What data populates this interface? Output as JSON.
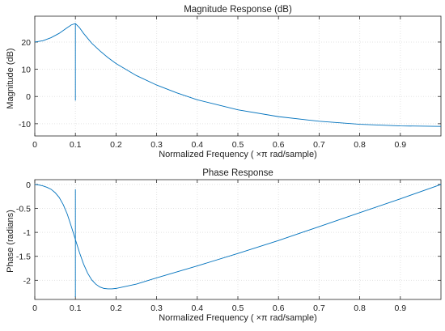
{
  "colors": {
    "line": "#0072bd",
    "axis": "#262626",
    "grid": "#e3e3e3"
  },
  "chart_data": [
    {
      "type": "line",
      "title": "Magnitude Response (dB)",
      "xlabel": "Normalized Frequency ( ×π rad/sample)",
      "ylabel": "Magnitude (dB)",
      "xlim": [
        0,
        1
      ],
      "ylim": [
        -14.5,
        29.5
      ],
      "grid": true,
      "xticks": [
        0,
        0.1,
        0.2,
        0.3,
        0.4,
        0.5,
        0.6,
        0.7,
        0.8,
        0.9
      ],
      "xtick_labels": [
        "0",
        "0.1",
        "0.2",
        "0.3",
        "0.4",
        "0.5",
        "0.6",
        "0.7",
        "0.8",
        "0.9"
      ],
      "yticks": [
        20,
        10,
        0,
        -10
      ],
      "ytick_labels": [
        "20",
        "10",
        "0",
        "-10"
      ],
      "series": [
        {
          "x": [
            0,
            0.02,
            0.04,
            0.06,
            0.08,
            0.09,
            0.1,
            0.11,
            0.12,
            0.14,
            0.16,
            0.18,
            0.2,
            0.25,
            0.3,
            0.35,
            0.4,
            0.5,
            0.6,
            0.7,
            0.8,
            0.9,
            1.0
          ],
          "y": [
            20.0,
            20.5,
            21.6,
            23.2,
            25.3,
            26.3,
            26.8,
            25.3,
            23.2,
            19.6,
            16.8,
            14.3,
            12.1,
            7.7,
            4.2,
            1.3,
            -1.2,
            -4.9,
            -7.4,
            -9.1,
            -10.2,
            -10.8,
            -11.0
          ]
        }
      ],
      "vertical_line": {
        "x": 0.1,
        "y": [
          26.8,
          -1.5
        ]
      }
    },
    {
      "type": "line",
      "title": "Phase Response",
      "xlabel": "Normalized Frequency ( ×π rad/sample)",
      "ylabel": "Phase (radians)",
      "xlim": [
        0,
        1
      ],
      "ylim": [
        -2.4,
        0.1
      ],
      "grid": true,
      "xticks": [
        0,
        0.1,
        0.2,
        0.3,
        0.4,
        0.5,
        0.6,
        0.7,
        0.8,
        0.9
      ],
      "xtick_labels": [
        "0",
        "0.1",
        "0.2",
        "0.3",
        "0.4",
        "0.5",
        "0.6",
        "0.7",
        "0.8",
        "0.9"
      ],
      "yticks": [
        0,
        -0.5,
        -1,
        -1.5,
        -2
      ],
      "ytick_labels": [
        "0",
        "-0.5",
        "-1",
        "-1.5",
        "-2"
      ],
      "series": [
        {
          "x": [
            0,
            0.01,
            0.02,
            0.03,
            0.04,
            0.05,
            0.06,
            0.07,
            0.08,
            0.09,
            0.1,
            0.11,
            0.12,
            0.13,
            0.14,
            0.15,
            0.16,
            0.17,
            0.18,
            0.19,
            0.2,
            0.25,
            0.3,
            0.4,
            0.5,
            0.6,
            0.7,
            0.8,
            0.9,
            1.0
          ],
          "y": [
            0,
            -0.01,
            -0.03,
            -0.06,
            -0.1,
            -0.17,
            -0.27,
            -0.42,
            -0.62,
            -0.88,
            -1.15,
            -1.42,
            -1.66,
            -1.85,
            -1.99,
            -2.08,
            -2.14,
            -2.17,
            -2.18,
            -2.18,
            -2.17,
            -2.08,
            -1.95,
            -1.7,
            -1.44,
            -1.17,
            -0.88,
            -0.59,
            -0.3,
            0.0
          ]
        }
      ],
      "vertical_line": {
        "x": 0.1,
        "y": [
          -0.1,
          -2.35
        ]
      }
    }
  ]
}
